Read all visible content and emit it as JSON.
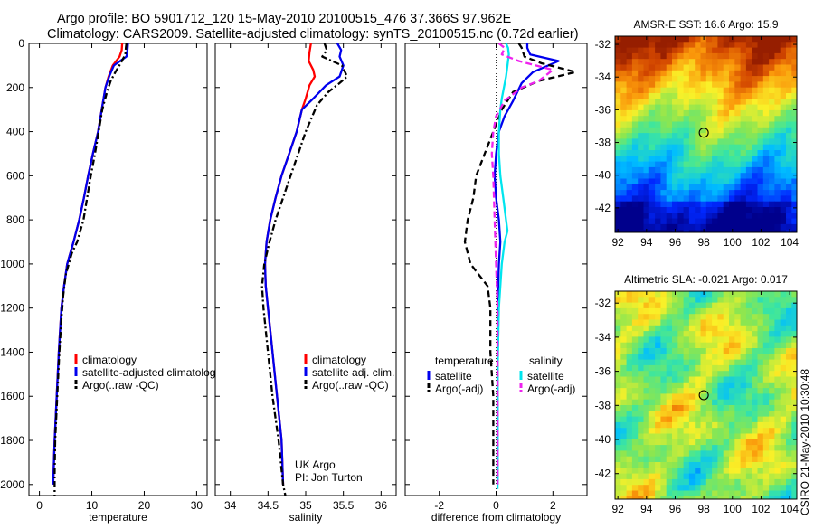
{
  "header": {
    "line1": "Argo profile: BO 5901712_120 15-May-2010 20100515_476 37.366S 97.962E",
    "line2": "Climatology: CARS2009. Satellite-adjusted climatology: synTS_20100515.nc (0.72d earlier)"
  },
  "credit": "CSIRO 21-May-2010 10:30:48",
  "chart_data": [
    {
      "type": "line",
      "xlabel": "temperature",
      "xlim": [
        -2,
        32
      ],
      "ylim": [
        2050,
        0
      ],
      "xticks": [
        0,
        10,
        20,
        30
      ],
      "yticks": [
        0,
        200,
        400,
        600,
        800,
        1000,
        1200,
        1400,
        1600,
        1800,
        2000
      ],
      "legend": [
        "climatology",
        "satellite-adjusted climatology",
        "Argo(..raw -QC)"
      ],
      "series": [
        {
          "name": "climatology",
          "color": "#ff0000",
          "dash": "solid",
          "x": [
            15.8,
            15.7,
            15.3,
            14.0,
            13.2,
            12.6,
            11.9,
            11.2,
            10.2,
            9.3,
            8.5,
            7.6,
            6.5,
            5.3,
            4.7,
            4.2,
            3.7,
            3.3,
            2.9,
            2.7,
            2.6
          ],
          "y": [
            0,
            30,
            60,
            100,
            150,
            200,
            300,
            400,
            500,
            600,
            700,
            800,
            900,
            1000,
            1100,
            1200,
            1400,
            1600,
            1800,
            1950,
            2000
          ]
        },
        {
          "name": "satellite-adjusted climatology",
          "color": "#0000ee",
          "dash": "solid",
          "x": [
            16.9,
            16.8,
            16.6,
            14.2,
            13.3,
            12.6,
            11.9,
            11.2,
            10.2,
            9.3,
            8.5,
            7.6,
            6.5,
            5.3,
            4.7,
            4.2,
            3.7,
            3.3,
            2.9,
            2.7,
            2.6
          ],
          "y": [
            0,
            30,
            60,
            100,
            150,
            200,
            300,
            400,
            500,
            600,
            700,
            800,
            900,
            1000,
            1100,
            1200,
            1400,
            1600,
            1800,
            1950,
            2000
          ]
        },
        {
          "name": "Argo(..raw -QC)",
          "color": "#000000",
          "dash": "dashdot",
          "x": [
            16.6,
            16.5,
            16.4,
            15.5,
            14.5,
            13.6,
            12.9,
            12.0,
            11.3,
            10.6,
            9.8,
            8.4,
            7.2,
            6.2,
            5.0,
            4.5,
            4.2,
            3.8,
            3.4,
            3.0,
            2.9,
            2.9
          ],
          "y": [
            0,
            20,
            50,
            90,
            130,
            170,
            220,
            300,
            400,
            500,
            600,
            800,
            900,
            950,
            1050,
            1150,
            1250,
            1400,
            1600,
            1800,
            1950,
            2050
          ]
        }
      ]
    },
    {
      "type": "line",
      "xlabel": "salinity",
      "xlim": [
        33.8,
        36.2
      ],
      "ylim": [
        2050,
        0
      ],
      "xticks": [
        34,
        34.5,
        35,
        35.5,
        36
      ],
      "note": [
        "UK Argo",
        "PI: Jon Turton"
      ],
      "legend": [
        "climatology",
        "satellite adj. clim.",
        "Argo(..raw -QC)"
      ],
      "series": [
        {
          "name": "climatology",
          "color": "#ff0000",
          "dash": "solid",
          "x": [
            35.07,
            35.05,
            35.04,
            35.1,
            35.12,
            35.05,
            35.0,
            34.95,
            34.88,
            34.78,
            34.68,
            34.6,
            34.53,
            34.48,
            34.46,
            34.47,
            34.5,
            34.56,
            34.62,
            34.68,
            34.7
          ],
          "y": [
            0,
            40,
            80,
            120,
            150,
            190,
            250,
            300,
            400,
            500,
            600,
            700,
            800,
            900,
            1000,
            1100,
            1200,
            1400,
            1600,
            1800,
            2000
          ]
        },
        {
          "name": "satellite adj. clim.",
          "color": "#0000ee",
          "dash": "solid",
          "x": [
            35.42,
            35.47,
            35.45,
            35.5,
            35.45,
            35.27,
            35.1,
            34.95,
            34.88,
            34.78,
            34.68,
            34.6,
            34.53,
            34.48,
            34.46,
            34.47,
            34.5,
            34.56,
            34.62,
            34.68,
            34.7
          ],
          "y": [
            0,
            30,
            60,
            100,
            150,
            190,
            250,
            300,
            400,
            500,
            600,
            700,
            800,
            900,
            1000,
            1100,
            1200,
            1400,
            1600,
            1800,
            2000
          ]
        },
        {
          "name": "Argo(..raw -QC)",
          "color": "#000000",
          "dash": "dashdot",
          "x": [
            35.25,
            35.28,
            35.22,
            35.48,
            35.55,
            35.45,
            35.3,
            35.15,
            35.0,
            34.9,
            34.8,
            34.7,
            34.6,
            34.52,
            34.45,
            34.42,
            34.44,
            34.5,
            34.56,
            34.64,
            34.7,
            34.73
          ],
          "y": [
            0,
            30,
            60,
            100,
            150,
            180,
            220,
            280,
            400,
            500,
            600,
            700,
            800,
            900,
            1000,
            1100,
            1200,
            1400,
            1600,
            1800,
            2000,
            2050
          ]
        }
      ]
    },
    {
      "type": "line",
      "xlabel": "difference from climatology",
      "xlim": [
        -3.2,
        3.2
      ],
      "ylim": [
        2050,
        0
      ],
      "xticks": [
        -2,
        0,
        2
      ],
      "legend_groups": [
        {
          "title": "temperature",
          "entries": [
            "satellite",
            "Argo(-adj)"
          ]
        },
        {
          "title": "salinity",
          "entries": [
            "satellite",
            "Argo(-adj)"
          ]
        }
      ],
      "series": [
        {
          "name": "temperature satellite",
          "color": "#0000ee",
          "dash": "solid",
          "x": [
            1.1,
            1.1,
            1.2,
            2.2,
            1.3,
            0.9,
            0.6,
            0.3,
            0.1,
            0.0,
            -0.05,
            0.0,
            0.1,
            0.15,
            0.1,
            0.05,
            0.05,
            0.05,
            0.05
          ],
          "y": [
            0,
            20,
            50,
            80,
            130,
            180,
            260,
            330,
            400,
            500,
            600,
            700,
            800,
            900,
            1000,
            1200,
            1500,
            1800,
            2000
          ]
        },
        {
          "name": "temperature Argo(-adj)",
          "color": "#000000",
          "dash": "dashed",
          "x": [
            0.8,
            0.9,
            1.0,
            1.6,
            2.8,
            1.5,
            0.6,
            0.2,
            -0.1,
            -0.4,
            -0.7,
            -0.8,
            -1.0,
            -1.1,
            -0.9,
            -0.3,
            -0.2,
            -0.2,
            -0.1,
            -0.1,
            -0.1
          ],
          "y": [
            0,
            20,
            60,
            90,
            130,
            170,
            220,
            300,
            400,
            500,
            600,
            700,
            800,
            900,
            1000,
            1100,
            1200,
            1400,
            1600,
            1800,
            2000
          ]
        },
        {
          "name": "salinity satellite",
          "color": "#00e5ee",
          "dash": "solid",
          "x": [
            0.35,
            0.42,
            0.45,
            0.4,
            0.35,
            0.2,
            0.15,
            0.1,
            0.1,
            0.15,
            0.25,
            0.35,
            0.4,
            0.3,
            0.2,
            0.1,
            0.05,
            0.05,
            0.05,
            0.05
          ],
          "y": [
            0,
            20,
            50,
            100,
            150,
            250,
            300,
            400,
            500,
            600,
            700,
            800,
            850,
            900,
            1000,
            1200,
            1500,
            1800,
            2000,
            2020
          ]
        },
        {
          "name": "salinity Argo(-adj)",
          "color": "#ee22ee",
          "dash": "dashed",
          "x": [
            0.1,
            0.3,
            0.2,
            0.8,
            2.0,
            1.5,
            0.9,
            0.3,
            0.0,
            -0.1,
            -0.15,
            -0.1,
            -0.05,
            0.0,
            0.05,
            0.05,
            0.05,
            0.05
          ],
          "y": [
            0,
            20,
            50,
            80,
            120,
            170,
            200,
            260,
            330,
            400,
            500,
            600,
            800,
            1000,
            1200,
            1500,
            1800,
            2000
          ]
        }
      ]
    },
    {
      "type": "heatmap",
      "title": "AMSR-E SST: 16.6 Argo: 15.9",
      "xlim": [
        91.8,
        104.5
      ],
      "ylim": [
        -43.5,
        -31.5
      ],
      "xticks": [
        92,
        94,
        96,
        98,
        100,
        102,
        104
      ],
      "yticks": [
        -32,
        -34,
        -36,
        -38,
        -40,
        -42
      ],
      "marker": {
        "x": 98.0,
        "y": -37.4
      },
      "colors": {
        "warm": "#c84a00",
        "cool": "#0018a0"
      }
    },
    {
      "type": "heatmap",
      "title": "Altimetric SLA: -0.021 Argo: 0.017",
      "xlim": [
        91.8,
        104.5
      ],
      "ylim": [
        -43.5,
        -31.3
      ],
      "xticks": [
        92,
        94,
        96,
        98,
        100,
        102,
        104
      ],
      "yticks": [
        -32,
        -34,
        -36,
        -38,
        -40,
        -42
      ],
      "marker": {
        "x": 98.0,
        "y": -37.4
      },
      "colors": {
        "base": "#7fd44a"
      }
    }
  ]
}
